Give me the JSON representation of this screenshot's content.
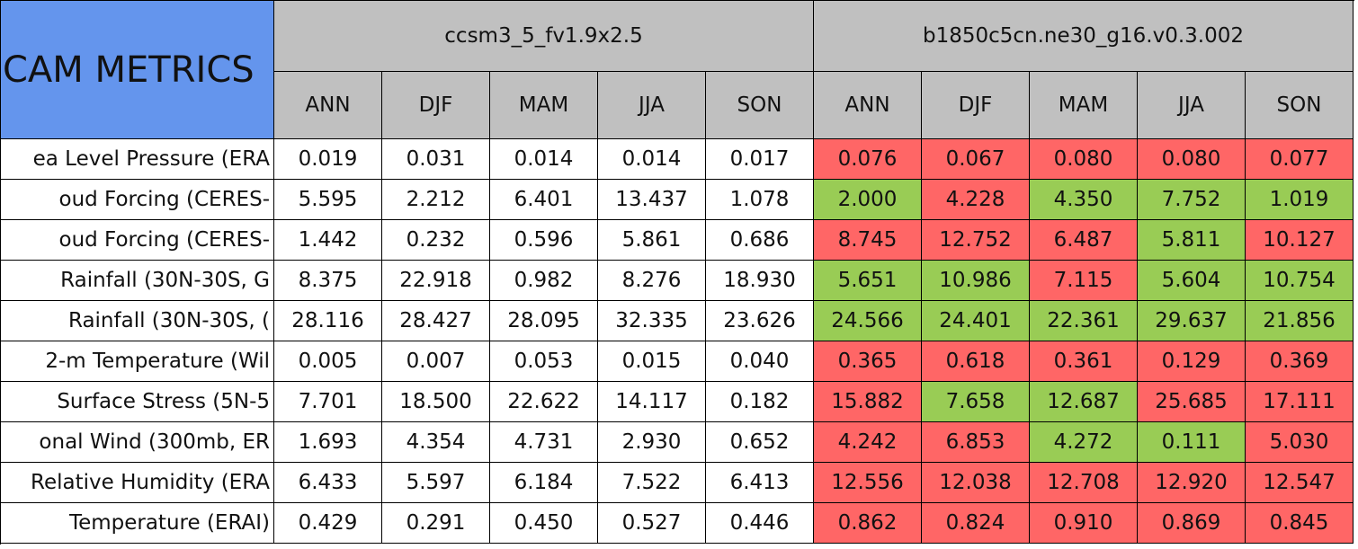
{
  "table": {
    "title": "CAM METRICS",
    "groups": [
      "ccsm3_5_fv1.9x2.5",
      "b1850c5cn.ne30_g16.v0.3.002"
    ],
    "seasons": [
      "ANN",
      "DJF",
      "MAM",
      "JJA",
      "SON",
      "ANN",
      "DJF",
      "MAM",
      "JJA",
      "SON"
    ],
    "rows": [
      {
        "label": "ea Level Pressure (ERA",
        "values": [
          "0.019",
          "0.031",
          "0.014",
          "0.014",
          "0.017",
          "0.076",
          "0.067",
          "0.080",
          "0.080",
          "0.077"
        ],
        "colors": [
          "#ff6666",
          "#ff6666",
          "#ff6666",
          "#ff6666",
          "#ff6666"
        ]
      },
      {
        "label": "oud Forcing (CERES-",
        "values": [
          "5.595",
          "2.212",
          "6.401",
          "13.437",
          "1.078",
          "2.000",
          "4.228",
          "4.350",
          "7.752",
          "1.019"
        ],
        "colors": [
          "#99cc55",
          "#ff6666",
          "#99cc55",
          "#99cc55",
          "#99cc55"
        ]
      },
      {
        "label": "oud Forcing (CERES-",
        "values": [
          "1.442",
          "0.232",
          "0.596",
          "5.861",
          "0.686",
          "8.745",
          "12.752",
          "6.487",
          "5.811",
          "10.127"
        ],
        "colors": [
          "#ff6666",
          "#ff6666",
          "#ff6666",
          "#99cc55",
          "#ff6666"
        ]
      },
      {
        "label": "Rainfall (30N-30S, G",
        "values": [
          "8.375",
          "22.918",
          "0.982",
          "8.276",
          "18.930",
          "5.651",
          "10.986",
          "7.115",
          "5.604",
          "10.754"
        ],
        "colors": [
          "#99cc55",
          "#99cc55",
          "#ff6666",
          "#99cc55",
          "#99cc55"
        ]
      },
      {
        "label": "Rainfall (30N-30S, (",
        "values": [
          "28.116",
          "28.427",
          "28.095",
          "32.335",
          "23.626",
          "24.566",
          "24.401",
          "22.361",
          "29.637",
          "21.856"
        ],
        "colors": [
          "#99cc55",
          "#99cc55",
          "#99cc55",
          "#99cc55",
          "#99cc55"
        ]
      },
      {
        "label": "2-m Temperature (Wil",
        "values": [
          "0.005",
          "0.007",
          "0.053",
          "0.015",
          "0.040",
          "0.365",
          "0.618",
          "0.361",
          "0.129",
          "0.369"
        ],
        "colors": [
          "#ff6666",
          "#ff6666",
          "#ff6666",
          "#ff6666",
          "#ff6666"
        ]
      },
      {
        "label": "Surface Stress (5N-5",
        "values": [
          "7.701",
          "18.500",
          "22.622",
          "14.117",
          "0.182",
          "15.882",
          "7.658",
          "12.687",
          "25.685",
          "17.111"
        ],
        "colors": [
          "#ff6666",
          "#99cc55",
          "#99cc55",
          "#ff6666",
          "#ff6666"
        ]
      },
      {
        "label": "onal Wind (300mb, ER",
        "values": [
          "1.693",
          "4.354",
          "4.731",
          "2.930",
          "0.652",
          "4.242",
          "6.853",
          "4.272",
          "0.111",
          "5.030"
        ],
        "colors": [
          "#ff6666",
          "#ff6666",
          "#99cc55",
          "#99cc55",
          "#ff6666"
        ]
      },
      {
        "label": "Relative Humidity (ERA",
        "values": [
          "6.433",
          "5.597",
          "6.184",
          "7.522",
          "6.413",
          "12.556",
          "12.038",
          "12.708",
          "12.920",
          "12.547"
        ],
        "colors": [
          "#ff6666",
          "#ff6666",
          "#ff6666",
          "#ff6666",
          "#ff6666"
        ]
      },
      {
        "label": "Temperature (ERAI)",
        "values": [
          "0.429",
          "0.291",
          "0.450",
          "0.527",
          "0.446",
          "0.862",
          "0.824",
          "0.910",
          "0.869",
          "0.845"
        ],
        "colors": [
          "#ff6666",
          "#ff6666",
          "#ff6666",
          "#ff6666",
          "#ff6666"
        ]
      }
    ]
  }
}
